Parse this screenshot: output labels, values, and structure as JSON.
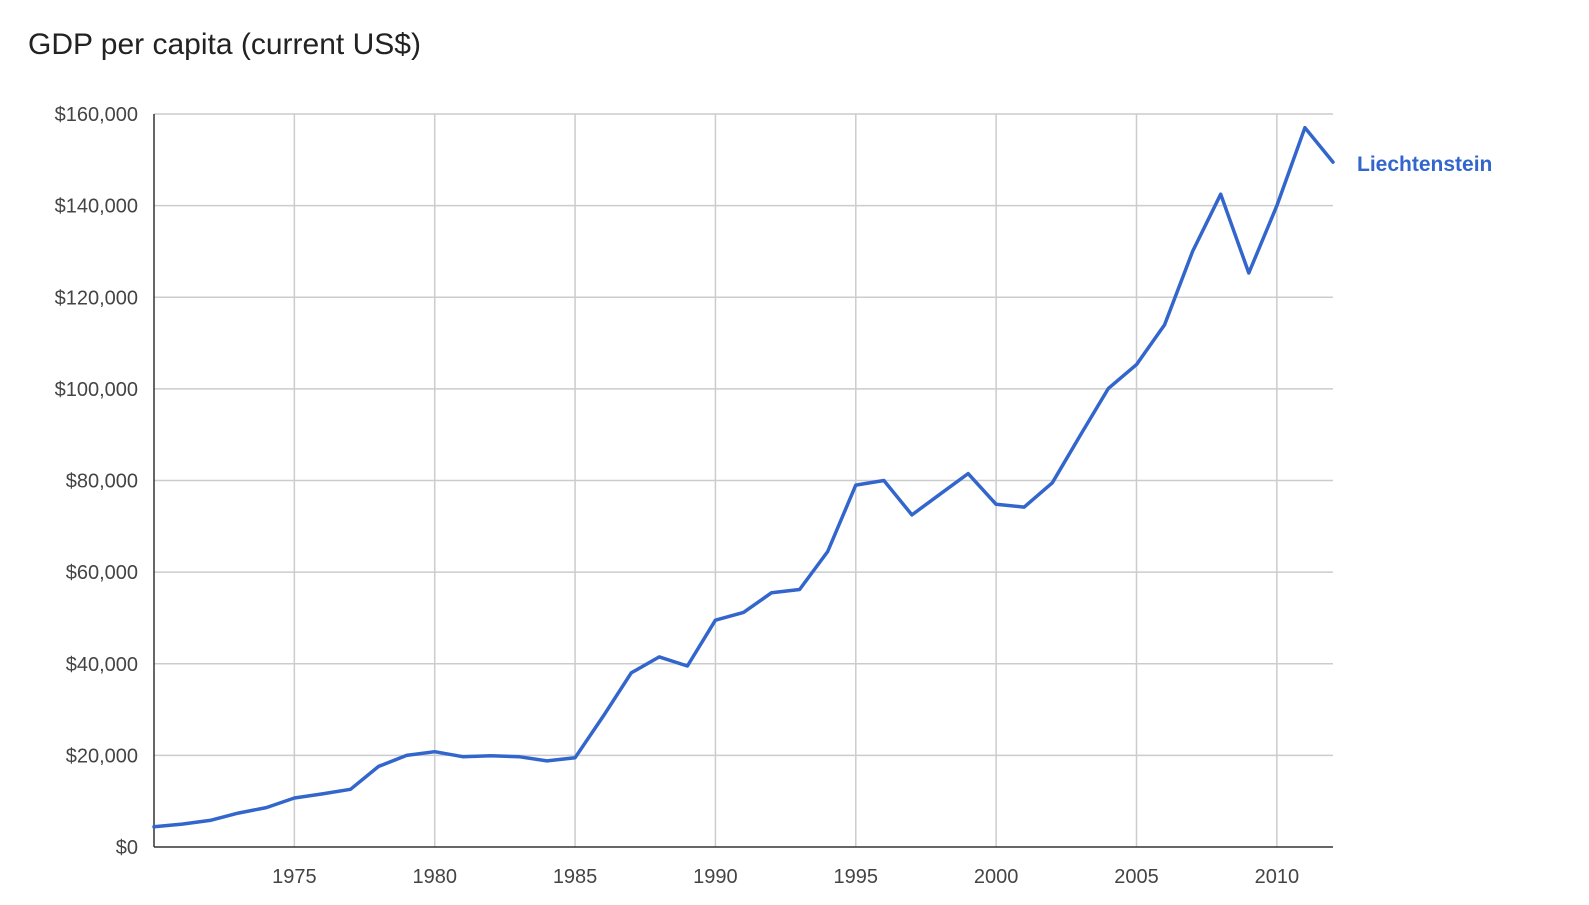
{
  "chart_data": {
    "type": "line",
    "title": "GDP per capita (current US$)",
    "xlabel": "",
    "ylabel": "",
    "xlim": [
      1970,
      2012
    ],
    "ylim": [
      0,
      160000
    ],
    "y_ticks": [
      {
        "value": 0,
        "label": "$0"
      },
      {
        "value": 20000,
        "label": "$20,000"
      },
      {
        "value": 40000,
        "label": "$40,000"
      },
      {
        "value": 60000,
        "label": "$60,000"
      },
      {
        "value": 80000,
        "label": "$80,000"
      },
      {
        "value": 100000,
        "label": "$100,000"
      },
      {
        "value": 120000,
        "label": "$120,000"
      },
      {
        "value": 140000,
        "label": "$140,000"
      },
      {
        "value": 160000,
        "label": "$160,000"
      }
    ],
    "x_ticks": [
      {
        "value": 1975,
        "label": "1975"
      },
      {
        "value": 1980,
        "label": "1980"
      },
      {
        "value": 1985,
        "label": "1985"
      },
      {
        "value": 1990,
        "label": "1990"
      },
      {
        "value": 1995,
        "label": "1995"
      },
      {
        "value": 2000,
        "label": "2000"
      },
      {
        "value": 2005,
        "label": "2005"
      },
      {
        "value": 2010,
        "label": "2010"
      }
    ],
    "grid": true,
    "legend_position": "right, at end of line",
    "series": [
      {
        "name": "Liechtenstein",
        "color": "#3366cc",
        "points": [
          [
            1970,
            4400
          ],
          [
            1971,
            5000
          ],
          [
            1972,
            5800
          ],
          [
            1973,
            7400
          ],
          [
            1974,
            8600
          ],
          [
            1975,
            10700
          ],
          [
            1976,
            11600
          ],
          [
            1977,
            12600
          ],
          [
            1978,
            17600
          ],
          [
            1979,
            20000
          ],
          [
            1980,
            20800
          ],
          [
            1981,
            19700
          ],
          [
            1982,
            19900
          ],
          [
            1983,
            19700
          ],
          [
            1984,
            18800
          ],
          [
            1985,
            19500
          ],
          [
            1986,
            28500
          ],
          [
            1987,
            38000
          ],
          [
            1988,
            41500
          ],
          [
            1989,
            39500
          ],
          [
            1990,
            49500
          ],
          [
            1991,
            51200
          ],
          [
            1992,
            55500
          ],
          [
            1993,
            56200
          ],
          [
            1994,
            64500
          ],
          [
            1995,
            79000
          ],
          [
            1996,
            80000
          ],
          [
            1997,
            72500
          ],
          [
            1998,
            77000
          ],
          [
            1999,
            81500
          ],
          [
            2000,
            74800
          ],
          [
            2001,
            74200
          ],
          [
            2002,
            79500
          ],
          [
            2003,
            89900
          ],
          [
            2004,
            100100
          ],
          [
            2005,
            105300
          ],
          [
            2006,
            114000
          ],
          [
            2007,
            130000
          ],
          [
            2008,
            142500
          ],
          [
            2009,
            125300
          ],
          [
            2010,
            140000
          ],
          [
            2011,
            157000
          ],
          [
            2012,
            149500
          ]
        ]
      }
    ]
  }
}
